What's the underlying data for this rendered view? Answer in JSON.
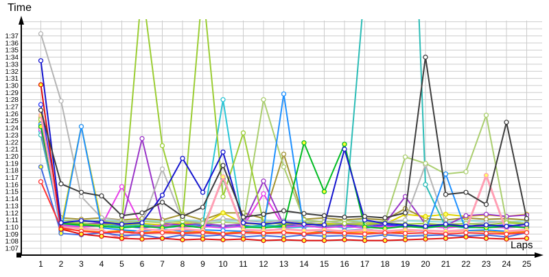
{
  "axis": {
    "time_label": "Time",
    "laps_label": "Laps"
  },
  "chart_data": {
    "type": "line",
    "title": "",
    "xlabel": "Laps",
    "ylabel": "Time",
    "x": [
      1,
      2,
      3,
      4,
      5,
      6,
      7,
      8,
      9,
      10,
      11,
      12,
      13,
      14,
      15,
      16,
      17,
      18,
      19,
      20,
      21,
      22,
      23,
      24,
      25
    ],
    "y_axis": {
      "unit": "m:ss",
      "tick_seconds": [
        67,
        68,
        69,
        70,
        71,
        72,
        73,
        74,
        75,
        76,
        77,
        78,
        79,
        80,
        81,
        82,
        83,
        84,
        85,
        86,
        87,
        88,
        89,
        90,
        91,
        92,
        93,
        94,
        95,
        96,
        97
      ],
      "tick_labels": [
        "1:07",
        "1:08",
        "1:09",
        "1:10",
        "1:11",
        "1:12",
        "1:13",
        "1:14",
        "1:15",
        "1:16",
        "1:17",
        "1:18",
        "1:19",
        "1:20",
        "1:21",
        "1:22",
        "1:23",
        "1:24",
        "1:25",
        "1:26",
        "1:27",
        "1:28",
        "1:29",
        "1:30",
        "1:31",
        "1:32",
        "1:33",
        "1:34",
        "1:35",
        "1:36",
        "1:37"
      ],
      "grid_top_seconds": 99,
      "grid_on": true
    },
    "series": [
      {
        "name": "lightcyan",
        "color": "#8fdede",
        "marker_fill": "#ffffff",
        "width": 2,
        "values": [
          84.0,
          71.0,
          70.8,
          71.0,
          70.8,
          70.9,
          70.8,
          71.0,
          70.8,
          70.9,
          70.8,
          71.0,
          70.8,
          70.9,
          70.7,
          70.9,
          70.8,
          70.7,
          70.9,
          70.8,
          70.7,
          70.9,
          70.8,
          70.7,
          70.9
        ]
      },
      {
        "name": "orange",
        "color": "#ff8a00",
        "marker_fill": "#ffffff",
        "width": 2,
        "values": [
          85.5,
          69.7,
          69.5,
          69.3,
          69.5,
          69.2,
          69.4,
          69.2,
          69.4,
          69.1,
          69.4,
          69.2,
          69.3,
          69.1,
          69.4,
          69.2,
          69.3,
          69.1,
          69.4,
          69.5,
          69.3,
          69.5,
          69.4,
          69.2,
          69.4
        ]
      },
      {
        "name": "khaki",
        "color": "#a39434",
        "marker_fill": "#ffffff",
        "width": 2,
        "values": [
          84.0,
          71.3,
          71.1,
          71.3,
          71.0,
          71.2,
          71.0,
          71.8,
          71.0,
          72.0,
          72.0,
          71.2,
          80.3,
          71.1,
          71.3,
          71.0,
          71.2,
          71.0,
          72.6,
          71.2,
          71.0,
          71.3,
          71.1,
          71.2,
          71.0
        ]
      },
      {
        "name": "yellow",
        "color": "#e0d400",
        "marker_fill": "#ffff66",
        "width": 2,
        "values": [
          84.7,
          70.1,
          84.2,
          70.6,
          70.3,
          70.5,
          70.3,
          70.6,
          70.3,
          72.0,
          70.5,
          70.4,
          70.6,
          70.3,
          70.5,
          70.4,
          70.6,
          70.4,
          71.8,
          71.5,
          71.8,
          71.5,
          71.7,
          71.5,
          71.8
        ]
      },
      {
        "name": "blue2",
        "color": "#2233ff",
        "marker_fill": "#ffffff",
        "width": 2,
        "values": [
          87.3,
          70.3,
          70.1,
          70.4,
          70.1,
          69.9,
          70.2,
          70.0,
          70.3,
          70.0,
          70.2,
          70.0,
          70.3,
          70.1,
          70.0,
          70.2,
          70.0,
          70.3,
          70.1,
          70.0,
          70.2,
          70.0,
          70.1,
          70.3,
          70.0
        ]
      },
      {
        "name": "cyan",
        "color": "#29c5d6",
        "marker_fill": "#ffffff",
        "width": 2,
        "values": [
          83.5,
          70.2,
          70.0,
          70.2,
          69.9,
          70.1,
          69.9,
          70.1,
          70.4,
          88.0,
          69.9,
          70.1,
          69.9,
          70.0,
          70.2,
          69.9,
          70.1,
          69.9,
          70.1,
          69.9,
          70.1,
          69.9,
          70.0,
          70.2,
          69.9
        ]
      },
      {
        "name": "teal",
        "color": "#2bbcb6",
        "marker_fill": "#ffffff",
        "width": 2,
        "values": [
          83.0,
          70.4,
          70.2,
          70.4,
          70.1,
          70.3,
          70.1,
          70.3,
          70.0,
          70.2,
          70.0,
          70.3,
          70.1,
          70.2,
          70.0,
          70.4,
          104.0,
          135.0,
          150.0,
          76.0,
          70.0,
          70.2,
          70.0,
          70.1,
          70.0
        ]
      },
      {
        "name": "magenta",
        "color": "#e83ce8",
        "marker_fill": "#ffffff",
        "width": 2,
        "values": [
          83.8,
          70.3,
          70.0,
          70.2,
          75.7,
          70.0,
          70.2,
          70.0,
          70.1,
          69.9,
          70.1,
          74.7,
          70.0,
          70.2,
          69.9,
          70.1,
          69.9,
          70.1,
          70.0,
          70.1,
          69.9,
          70.1,
          70.0,
          69.9,
          70.1
        ]
      },
      {
        "name": "purple",
        "color": "#9a35c8",
        "marker_fill": "#ffffff",
        "width": 2,
        "values": [
          84.5,
          70.6,
          70.4,
          70.6,
          70.3,
          82.5,
          70.5,
          70.3,
          70.5,
          70.2,
          70.4,
          76.5,
          70.3,
          70.5,
          70.2,
          70.4,
          70.2,
          70.5,
          74.3,
          70.4,
          70.2,
          71.6,
          71.8,
          71.5,
          71.7
        ]
      },
      {
        "name": "silver",
        "color": "#b4b4b4",
        "marker_fill": "#ffffff",
        "width": 2,
        "values": [
          97.3,
          87.8,
          74.3,
          71.3,
          70.9,
          70.6,
          78.2,
          70.9,
          70.6,
          71.2,
          70.9,
          70.7,
          70.9,
          70.6,
          70.8,
          70.5,
          70.7,
          70.6,
          71.0,
          78.8,
          70.5,
          70.4,
          70.6,
          70.8,
          70.5
        ]
      },
      {
        "name": "palegreen",
        "color": "#aace6e",
        "marker_fill": "#ffffff",
        "width": 2,
        "values": [
          85.5,
          71.0,
          70.7,
          70.9,
          70.6,
          70.8,
          70.6,
          70.8,
          70.5,
          70.7,
          70.5,
          88.0,
          78.5,
          71.0,
          70.7,
          70.9,
          70.6,
          70.8,
          79.9,
          79.0,
          77.5,
          77.8,
          85.8,
          70.8,
          70.5
        ]
      },
      {
        "name": "yellowgreen",
        "color": "#9acd32",
        "marker_fill": "#ffffff",
        "width": 2,
        "values": [
          85.2,
          70.7,
          70.5,
          70.3,
          70.5,
          104.0,
          81.5,
          71.2,
          104.0,
          74.3,
          83.3,
          70.6,
          70.4,
          70.6,
          70.3,
          70.5,
          70.3,
          70.6,
          70.4,
          70.5,
          70.3,
          70.5,
          70.3,
          70.6,
          70.4
        ]
      },
      {
        "name": "dodgerblue",
        "color": "#1e90ff",
        "marker_fill": "#ffffff",
        "width": 2,
        "values": [
          84.5,
          69.4,
          84.2,
          69.9,
          69.6,
          69.4,
          69.7,
          69.4,
          69.6,
          69.5,
          69.4,
          69.6,
          88.8,
          69.6,
          69.4,
          69.5,
          69.7,
          69.4,
          69.6,
          69.4,
          77.5,
          69.5,
          69.6,
          69.4,
          69.6
        ]
      },
      {
        "name": "green",
        "color": "#00bb22",
        "marker_fill": "#ffff33",
        "width": 2,
        "values": [
          84.2,
          70.5,
          70.3,
          70.1,
          69.9,
          70.1,
          69.9,
          70.2,
          69.9,
          76.8,
          70.0,
          69.9,
          70.1,
          81.9,
          75.0,
          81.7,
          70.0,
          69.8,
          70.1,
          69.9,
          70.2,
          70.0,
          69.9,
          70.1,
          69.9
        ]
      },
      {
        "name": "pink",
        "color": "#ff9fb4",
        "marker_fill": "#ffff66",
        "width": 3,
        "values": [
          85.8,
          70.0,
          69.8,
          69.6,
          68.3,
          69.7,
          69.5,
          69.7,
          69.5,
          77.1,
          69.6,
          69.5,
          69.7,
          69.5,
          69.6,
          69.4,
          69.6,
          69.4,
          69.6,
          69.5,
          69.4,
          69.6,
          77.3,
          69.4,
          69.6
        ]
      },
      {
        "name": "royalblue",
        "color": "#4169e1",
        "marker_fill": "#ffff33",
        "width": 2,
        "values": [
          78.5,
          69.1,
          68.9,
          69.2,
          68.8,
          68.9,
          68.4,
          68.9,
          68.7,
          68.9,
          68.6,
          68.8,
          68.6,
          68.9,
          68.7,
          68.8,
          68.6,
          68.9,
          68.7,
          68.8,
          68.9,
          68.7,
          68.9,
          68.6,
          69.2
        ]
      },
      {
        "name": "red2",
        "color": "#ff3333",
        "marker_fill": "#ffffff",
        "width": 2,
        "values": [
          76.4,
          69.9,
          69.4,
          69.2,
          69.3,
          69.1,
          69.2,
          69.1,
          69.2,
          69.0,
          69.2,
          69.1,
          69.2,
          69.0,
          69.2,
          69.1,
          69.0,
          69.2,
          69.1,
          69.2,
          69.0,
          69.2,
          69.1,
          69.0,
          69.2
        ]
      },
      {
        "name": "red",
        "color": "#e01010",
        "marker_fill": "#ffff33",
        "width": 2,
        "values": [
          90.1,
          69.7,
          69.0,
          68.7,
          68.4,
          68.3,
          68.4,
          68.2,
          68.3,
          68.2,
          68.3,
          68.1,
          68.2,
          68.1,
          68.1,
          68.2,
          68.1,
          68.1,
          68.2,
          68.3,
          68.4,
          68.6,
          68.4,
          68.3,
          68.4
        ]
      },
      {
        "name": "mediumblue",
        "color": "#1515cf",
        "marker_fill": "#ffffff",
        "width": 2,
        "values": [
          93.5,
          70.6,
          70.9,
          70.7,
          70.4,
          70.6,
          74.5,
          79.7,
          74.9,
          80.6,
          70.6,
          70.4,
          70.7,
          70.4,
          70.3,
          81.0,
          71.0,
          70.5,
          70.3,
          70.1,
          70.4,
          70.1,
          70.3,
          70.1,
          70.4
        ]
      },
      {
        "name": "black",
        "color": "#3c3c3c",
        "marker_fill": "#ffffff",
        "width": 2,
        "values": [
          86.5,
          76.1,
          74.9,
          74.4,
          71.6,
          72.0,
          73.5,
          71.5,
          72.8,
          78.7,
          71.4,
          71.8,
          72.3,
          71.9,
          71.6,
          71.4,
          71.5,
          71.3,
          72.0,
          94.0,
          74.6,
          74.9,
          73.2,
          84.8,
          71.2
        ]
      }
    ]
  }
}
